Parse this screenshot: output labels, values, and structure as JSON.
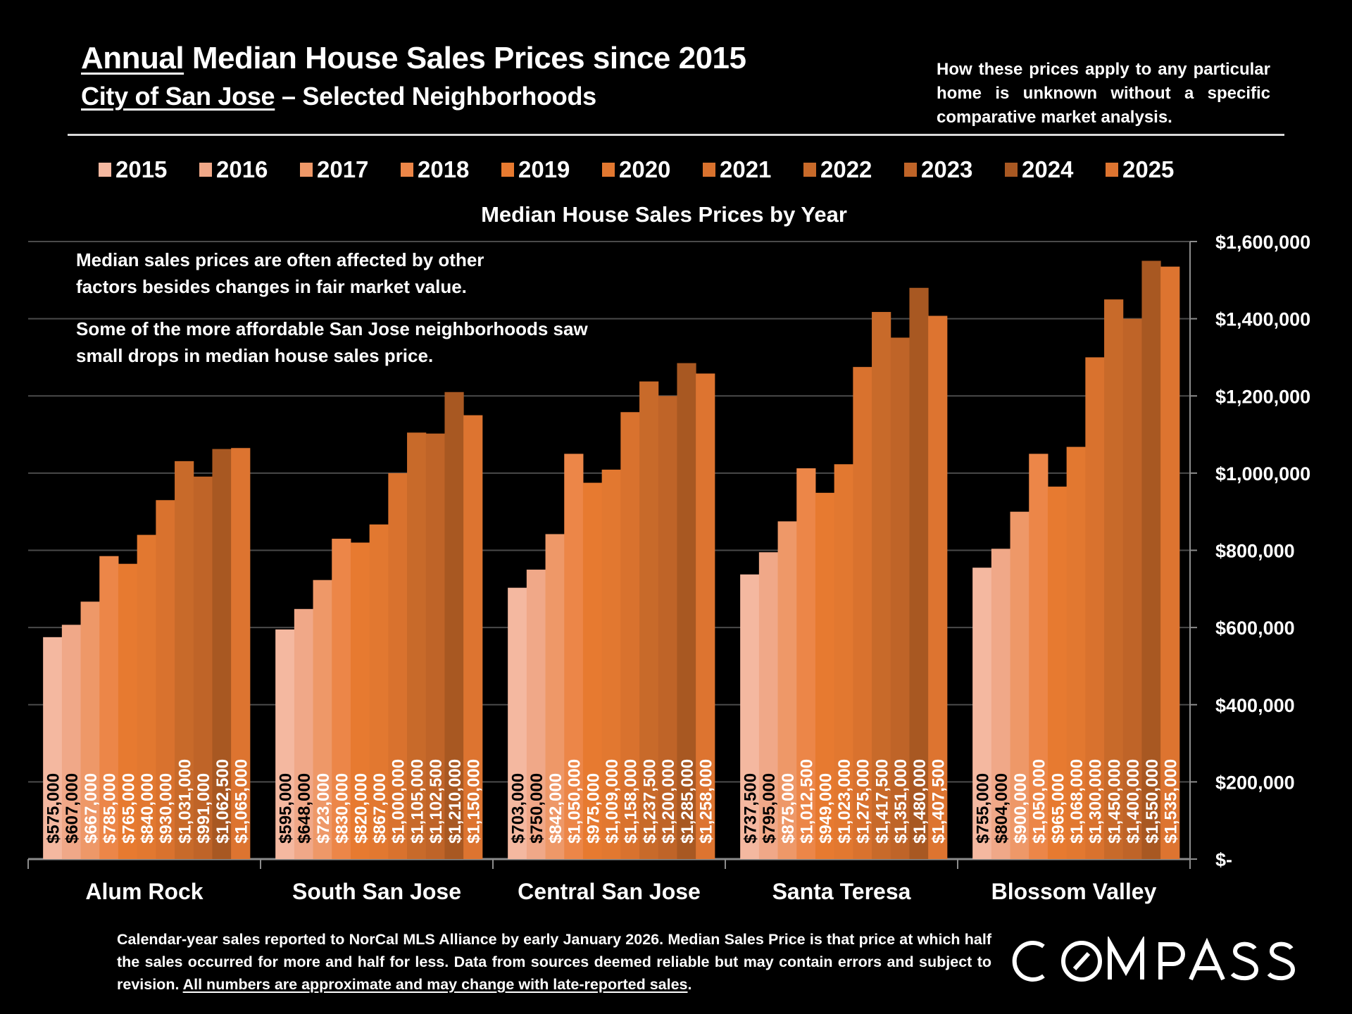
{
  "header": {
    "title_underlined": "Annual",
    "title_rest": " Median House Sales Prices since 2015",
    "subtitle_underlined": "City of San Jose",
    "subtitle_rest": " – Selected Neighborhoods",
    "disclaimer": "How these prices apply to any particular home is unknown without a specific comparative market analysis."
  },
  "notes": {
    "note1": "Median sales prices are often affected by other factors besides changes in fair market value.",
    "note2": "Some of the more affordable San Jose neighborhoods saw small drops in median house sales price."
  },
  "footer": {
    "text": "Calendar-year sales reported to NorCal MLS Alliance by early January 2026. Median Sales Price is that price at which half the sales occurred for more and half for less. Data from sources deemed reliable but may contain errors and subject to revision. ",
    "underlined": "All numbers are approximate and may change with late-reported sales",
    "end": "."
  },
  "logo": {
    "text": "COMPASS"
  },
  "chart_data": {
    "type": "bar",
    "title": "Median House Sales Prices by Year",
    "xlabel": "",
    "ylabel": "",
    "ylim": [
      0,
      1600000
    ],
    "yticks": [
      0,
      200000,
      400000,
      600000,
      800000,
      1000000,
      1200000,
      1400000,
      1600000
    ],
    "ytick_labels": [
      "$-",
      "$200,000",
      "$400,000",
      "$600,000",
      "$800,000",
      "$1,000,000",
      "$1,200,000",
      "$1,400,000",
      "$1,600,000"
    ],
    "y_axis_side": "right",
    "grid": true,
    "legend_position": "top",
    "categories": [
      "Alum Rock",
      "South San Jose",
      "Central San Jose",
      "Santa Teresa",
      "Blossom Valley"
    ],
    "series": [
      {
        "name": "2015",
        "color": "#F4B8A0",
        "label_color": "#000000",
        "values": [
          575000,
          595000,
          703000,
          737500,
          755000
        ],
        "labels": [
          "$575,000",
          "$595,000",
          "$703,000",
          "$737,500",
          "$755,000"
        ]
      },
      {
        "name": "2016",
        "color": "#F0A888",
        "label_color": "#000000",
        "values": [
          607000,
          648000,
          750000,
          795000,
          804000
        ],
        "labels": [
          "$607,000",
          "$648,000",
          "$750,000",
          "$795,000",
          "$804,000"
        ]
      },
      {
        "name": "2017",
        "color": "#EE9868",
        "label_color": "#FFFFFF",
        "values": [
          667000,
          723000,
          842000,
          875000,
          900000
        ],
        "labels": [
          "$667,000",
          "$723,000",
          "$842,000",
          "$875,000",
          "$900,000"
        ]
      },
      {
        "name": "2018",
        "color": "#EC8648",
        "label_color": "#FFFFFF",
        "values": [
          785000,
          830000,
          1050000,
          1012500,
          1050000
        ],
        "labels": [
          "$785,000",
          "$830,000",
          "$1,050,000",
          "$1,012,500",
          "$1,050,000"
        ]
      },
      {
        "name": "2019",
        "color": "#E77A30",
        "label_color": "#FFFFFF",
        "values": [
          765000,
          820000,
          975000,
          949000,
          965000
        ],
        "labels": [
          "$765,000",
          "$820,000",
          "$975,000",
          "$949,000",
          "$965,000"
        ]
      },
      {
        "name": "2020",
        "color": "#E27830",
        "label_color": "#FFFFFF",
        "values": [
          840000,
          867000,
          1009000,
          1023000,
          1068000
        ],
        "labels": [
          "$840,000",
          "$867,000",
          "$1,009,000",
          "$1,023,000",
          "$1,068,000"
        ]
      },
      {
        "name": "2021",
        "color": "#D9722E",
        "label_color": "#FFFFFF",
        "values": [
          930000,
          1000000,
          1158000,
          1275000,
          1300000
        ],
        "labels": [
          "$930,000",
          "$1,000,000",
          "$1,158,000",
          "$1,275,000",
          "$1,300,000"
        ]
      },
      {
        "name": "2022",
        "color": "#C86A2A",
        "label_color": "#FFFFFF",
        "values": [
          1031000,
          1105000,
          1237500,
          1417500,
          1450000
        ],
        "labels": [
          "$1,031,000",
          "$1,105,000",
          "$1,237,500",
          "$1,417,500",
          "$1,450,000"
        ]
      },
      {
        "name": "2023",
        "color": "#BF6428",
        "label_color": "#FFFFFF",
        "values": [
          991000,
          1102500,
          1200000,
          1351000,
          1400000
        ],
        "labels": [
          "$991,000",
          "$1,102,500",
          "$1,200,000",
          "$1,351,000",
          "$1,400,000"
        ]
      },
      {
        "name": "2024",
        "color": "#A85822",
        "label_color": "#FFFFFF",
        "values": [
          1062500,
          1210000,
          1285000,
          1480000,
          1550000
        ],
        "labels": [
          "$1,062,500",
          "$1,210,000",
          "$1,285,000",
          "$1,480,000",
          "$1,550,000"
        ]
      },
      {
        "name": "2025",
        "color": "#DD7430",
        "label_color": "#FFFFFF",
        "values": [
          1065000,
          1150000,
          1258000,
          1407500,
          1535000
        ],
        "labels": [
          "$1,065,000",
          "$1,150,000",
          "$1,258,000",
          "$1,407,500",
          "$1,535,000"
        ]
      }
    ]
  }
}
